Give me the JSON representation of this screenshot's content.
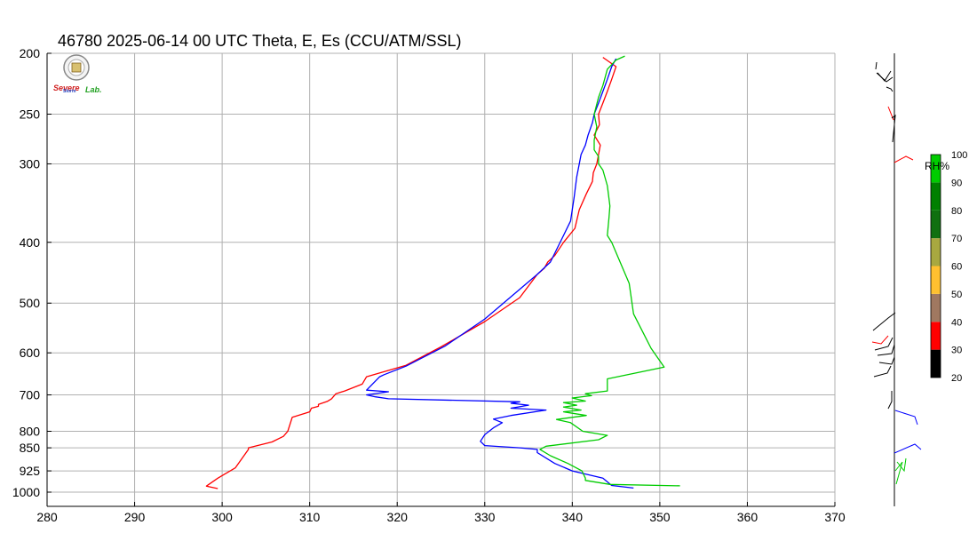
{
  "title": "46780  2025-06-14 00 UTC  Theta, E, Es (CCU/ATM/SSL)",
  "logo": {
    "line1": "Severe",
    "line2": "Storm",
    "line3": "Lab."
  },
  "chart_data": {
    "type": "line",
    "x_ticks": [
      280,
      290,
      300,
      310,
      320,
      330,
      340,
      350,
      360,
      370
    ],
    "y_ticks": [
      200,
      250,
      300,
      400,
      500,
      600,
      700,
      800,
      850,
      925,
      1000
    ],
    "xlim": [
      280,
      370
    ],
    "ylim": [
      1025,
      200
    ],
    "yscale": "log-pressure",
    "grid": true,
    "series": [
      {
        "color": "#ff0000",
        "points": [
          [
            299.5,
            987
          ],
          [
            298.2,
            978
          ],
          [
            299.5,
            950
          ],
          [
            301.5,
            915
          ],
          [
            303,
            855
          ],
          [
            303,
            850
          ],
          [
            305.7,
            832
          ],
          [
            307,
            815
          ],
          [
            307.5,
            800
          ],
          [
            308,
            760
          ],
          [
            310,
            745
          ],
          [
            310.2,
            735
          ],
          [
            311,
            730
          ],
          [
            311,
            725
          ],
          [
            312,
            717
          ],
          [
            312.5,
            710
          ],
          [
            313,
            697
          ],
          [
            314,
            690
          ],
          [
            316,
            673
          ],
          [
            316.5,
            655
          ],
          [
            321,
            628
          ],
          [
            325,
            587
          ],
          [
            330,
            535
          ],
          [
            334,
            490
          ],
          [
            336,
            450
          ],
          [
            336.8,
            440
          ],
          [
            337.2,
            430
          ],
          [
            338,
            420
          ],
          [
            339,
            400
          ],
          [
            340.3,
            380
          ],
          [
            340.8,
            355
          ],
          [
            341.6,
            335
          ],
          [
            342.3,
            320
          ],
          [
            342.4,
            310
          ],
          [
            342.8,
            300
          ],
          [
            343,
            290
          ],
          [
            343.2,
            280
          ],
          [
            342.5,
            270
          ],
          [
            343.1,
            260
          ],
          [
            343,
            250
          ],
          [
            343.5,
            240
          ],
          [
            344,
            230
          ],
          [
            344.5,
            220
          ],
          [
            345,
            210
          ],
          [
            343.5,
            203
          ]
        ]
      },
      {
        "color": "#0000ff",
        "points": [
          [
            347,
            985
          ],
          [
            344.5,
            976
          ],
          [
            343.5,
            950
          ],
          [
            340,
            925
          ],
          [
            338,
            900
          ],
          [
            336,
            865
          ],
          [
            336,
            855
          ],
          [
            334,
            850
          ],
          [
            330,
            843
          ],
          [
            329.5,
            830
          ],
          [
            330,
            810
          ],
          [
            331,
            790
          ],
          [
            332,
            775
          ],
          [
            331,
            765
          ],
          [
            333,
            755
          ],
          [
            337,
            740
          ],
          [
            333,
            735
          ],
          [
            335,
            727
          ],
          [
            333,
            722
          ],
          [
            334,
            718
          ],
          [
            319,
            710
          ],
          [
            317.5,
            705
          ],
          [
            316.5,
            700
          ],
          [
            319,
            692
          ],
          [
            316.5,
            688
          ],
          [
            318,
            655
          ],
          [
            318.5,
            650
          ],
          [
            321,
            630
          ],
          [
            325.5,
            585
          ],
          [
            330,
            530
          ],
          [
            336,
            450
          ],
          [
            337.5,
            430
          ],
          [
            339,
            390
          ],
          [
            339.8,
            370
          ],
          [
            340.2,
            340
          ],
          [
            340.5,
            315
          ],
          [
            340.8,
            300
          ],
          [
            341,
            290
          ],
          [
            341.5,
            280
          ],
          [
            341.8,
            270
          ],
          [
            342.3,
            258
          ],
          [
            342.5,
            250
          ],
          [
            343,
            240
          ],
          [
            343.5,
            230
          ],
          [
            344,
            220
          ],
          [
            344.5,
            210
          ],
          [
            345,
            204
          ]
        ]
      },
      {
        "color": "#00cc00",
        "points": [
          [
            352.3,
            977
          ],
          [
            344.3,
            972
          ],
          [
            341.5,
            958
          ],
          [
            341.5,
            950
          ],
          [
            341.1,
            925
          ],
          [
            339.5,
            900
          ],
          [
            337.5,
            875
          ],
          [
            336.3,
            855
          ],
          [
            337,
            845
          ],
          [
            343,
            825
          ],
          [
            344,
            812
          ],
          [
            341.2,
            800
          ],
          [
            339.8,
            775
          ],
          [
            338.2,
            766
          ],
          [
            341.6,
            755
          ],
          [
            339,
            745
          ],
          [
            341,
            740
          ],
          [
            339,
            732
          ],
          [
            340.5,
            727
          ],
          [
            339,
            720
          ],
          [
            341.5,
            716
          ],
          [
            340,
            708
          ],
          [
            342.2,
            702
          ],
          [
            341.5,
            697
          ],
          [
            344,
            690
          ],
          [
            344,
            660
          ],
          [
            350.5,
            632
          ],
          [
            349,
            590
          ],
          [
            347,
            520
          ],
          [
            346.5,
            465
          ],
          [
            344.5,
            400
          ],
          [
            344,
            390
          ],
          [
            344.2,
            365
          ],
          [
            344.3,
            350
          ],
          [
            344,
            325
          ],
          [
            343.5,
            307
          ],
          [
            343,
            300
          ],
          [
            343,
            292
          ],
          [
            342.5,
            285
          ],
          [
            342.5,
            275
          ],
          [
            342.8,
            262
          ],
          [
            342.5,
            250
          ],
          [
            343,
            235
          ],
          [
            343.5,
            225
          ],
          [
            344,
            212
          ],
          [
            345,
            205
          ],
          [
            346,
            202
          ]
        ]
      }
    ],
    "rh_scale": {
      "label": "RH%",
      "ticks": [
        20,
        30,
        40,
        50,
        60,
        70,
        80,
        90,
        100
      ],
      "colors": [
        "#000000",
        "#ff0000",
        "#a07860",
        "#ffc030",
        "#a8a840",
        "#107010",
        "#008000",
        "#00cc00",
        "#0000ff"
      ]
    },
    "wind_profile": {
      "segments": [
        {
          "color": "#000000",
          "pts": [
            [
              986,
              78
            ],
            [
              987,
              70
            ]
          ]
        },
        {
          "color": "#000000",
          "pts": [
            [
              987,
              82
            ],
            [
              998,
              92
            ],
            [
              1005,
              87
            ]
          ]
        },
        {
          "color": "#000000",
          "pts": [
            [
              988,
              82
            ],
            [
              996,
              91
            ],
            [
              1003,
              80
            ]
          ]
        },
        {
          "color": "#000000",
          "pts": [
            [
              998,
              98
            ],
            [
              1003,
              100
            ],
            [
              1005,
              103
            ]
          ]
        },
        {
          "color": "#ff0000",
          "pts": [
            [
              1000,
              120
            ],
            [
              1006,
              135
            ]
          ]
        },
        {
          "color": "#000000",
          "pts": [
            [
              1004,
              133
            ],
            [
              1008,
              130
            ],
            [
              1005,
              160
            ]
          ]
        },
        {
          "color": "#ff0000",
          "pts": [
            [
              1007,
              183
            ],
            [
              1020,
              176
            ],
            [
              1028,
              180
            ]
          ]
        },
        {
          "color": "#000000",
          "pts": [
            [
              983,
              372
            ],
            [
              1000,
              358
            ],
            [
              1008,
              352
            ]
          ]
        },
        {
          "color": "#ff0000",
          "pts": [
            [
              982,
              385
            ],
            [
              992,
              387
            ],
            [
              1000,
              378
            ]
          ]
        },
        {
          "color": "#000000",
          "pts": [
            [
              985,
              394
            ],
            [
              1000,
              390
            ],
            [
              1005,
              380
            ]
          ]
        },
        {
          "color": "#000000",
          "pts": [
            [
              988,
              400
            ],
            [
              1004,
              398
            ],
            [
              1007,
              388
            ]
          ]
        },
        {
          "color": "#000000",
          "pts": [
            [
              990,
              408
            ],
            [
              1004,
              410
            ],
            [
              1007,
              402
            ]
          ]
        },
        {
          "color": "#000000",
          "pts": [
            [
              984,
              424
            ],
            [
              999,
              420
            ],
            [
              1003,
              412
            ]
          ]
        },
        {
          "color": "#000000",
          "pts": [
            [
              1000,
              460
            ],
            [
              1004,
              452
            ],
            [
              1004,
              440
            ]
          ]
        },
        {
          "color": "#0000ff",
          "pts": [
            [
              1008,
              462
            ],
            [
              1030,
              469
            ],
            [
              1033,
              478
            ]
          ]
        },
        {
          "color": "#0000ff",
          "pts": [
            [
              1007,
              510
            ],
            [
              1030,
              500
            ],
            [
              1037,
              506
            ]
          ]
        },
        {
          "color": "#00cc00",
          "pts": [
            [
              1010,
              520
            ],
            [
              1018,
              530
            ],
            [
              1020,
              516
            ]
          ]
        },
        {
          "color": "#00cc00",
          "pts": [
            [
              1008,
              530
            ],
            [
              1016,
              520
            ],
            [
              1009,
              545
            ]
          ]
        }
      ]
    }
  }
}
